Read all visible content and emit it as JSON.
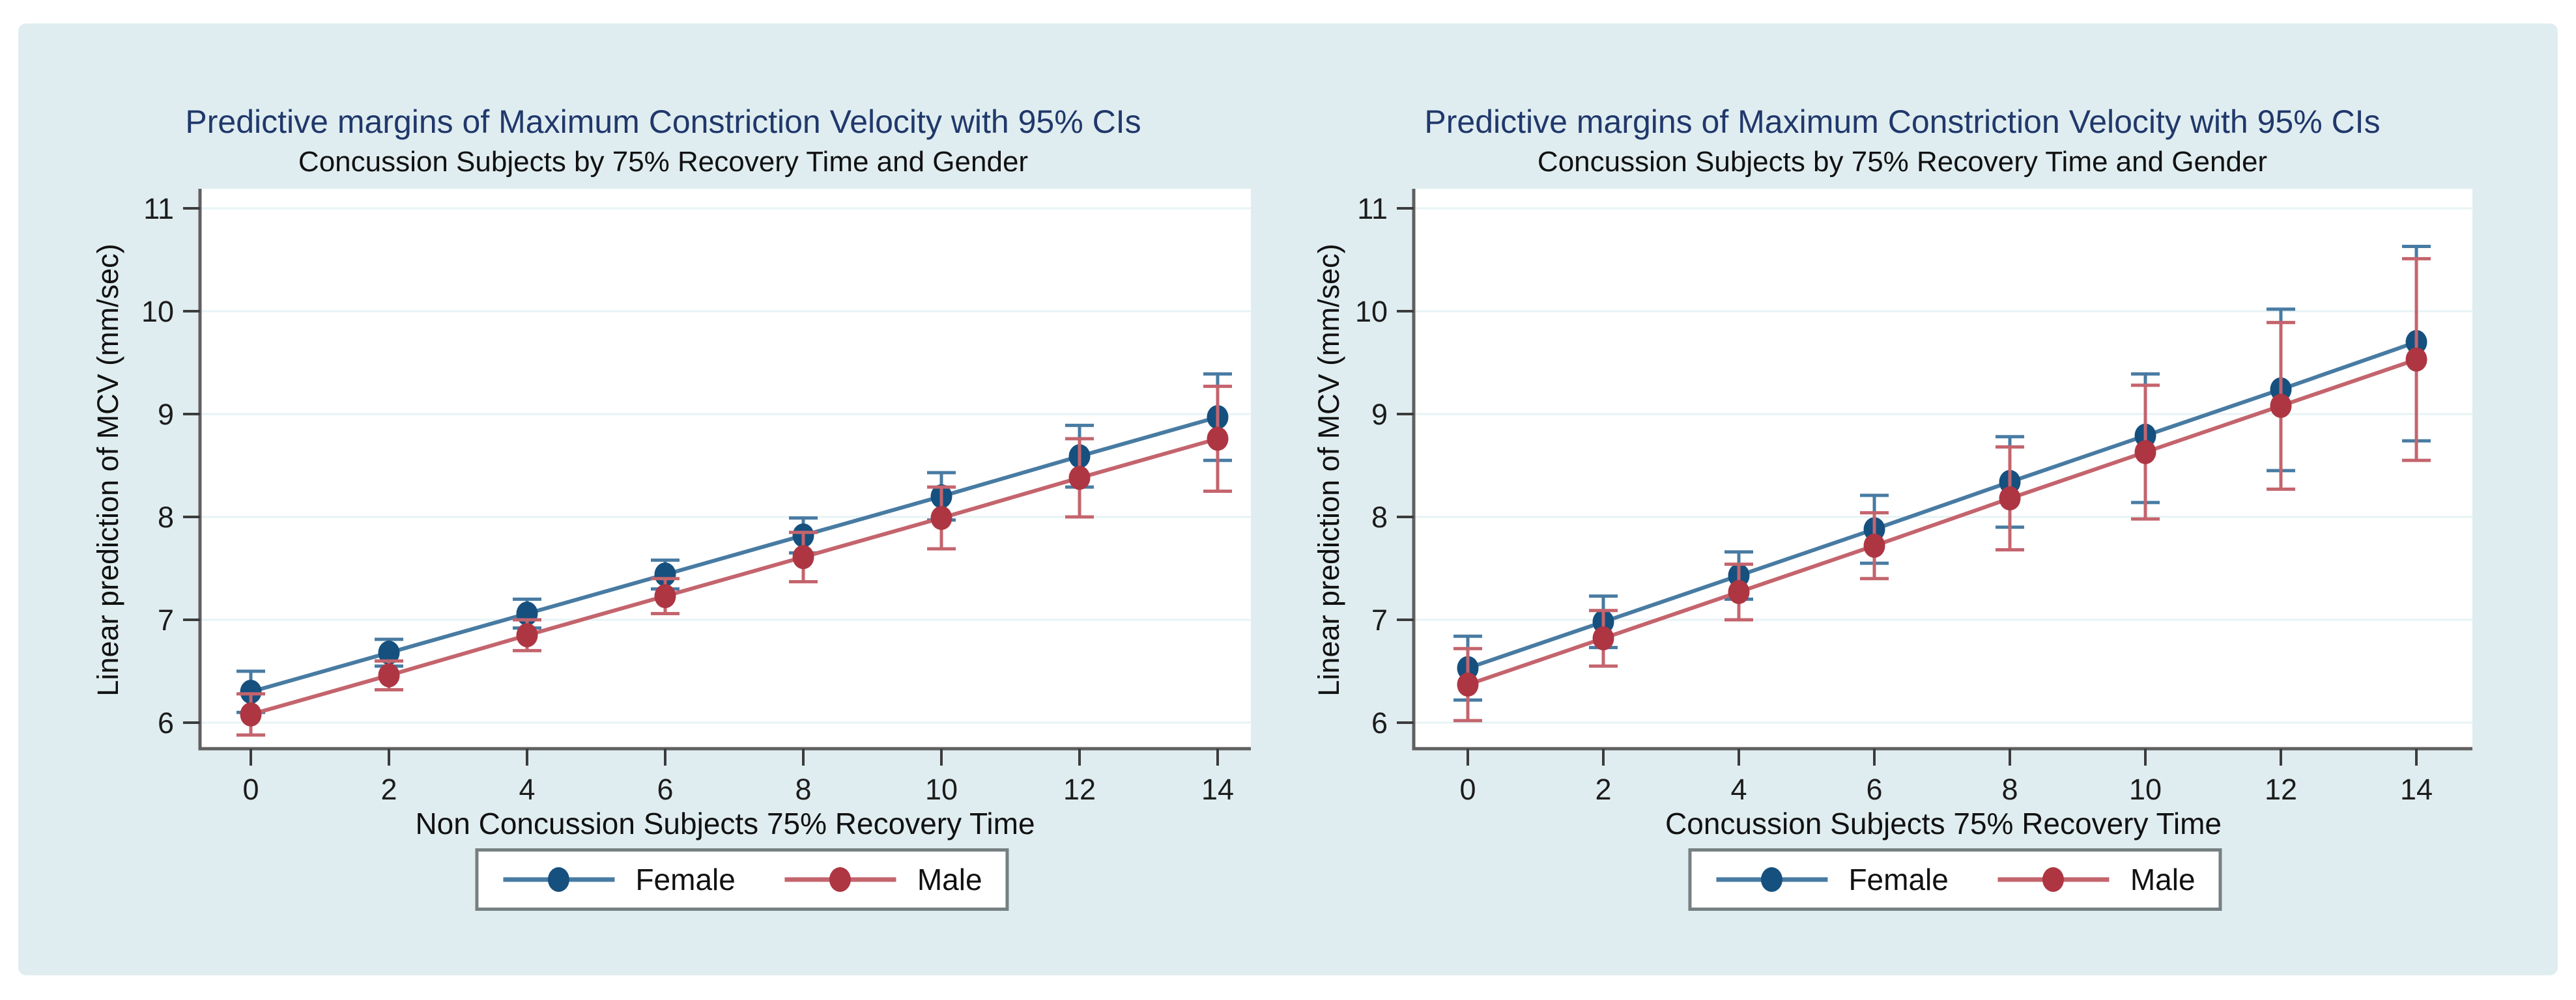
{
  "page": {
    "background_color": "#ffffff",
    "panel_color": "#e0edf0"
  },
  "colors": {
    "title_navy": "#20386b",
    "female_marker": "#15507e",
    "female_line": "#487ba2",
    "male_marker": "#ad3642",
    "male_line": "#c4646d",
    "axis_gray": "#606060",
    "gridline": "#e7f3f5",
    "plot_background": "#ffffff",
    "legend_border": "#768082"
  },
  "legend": {
    "items": [
      {
        "label": "Female"
      },
      {
        "label": "Male"
      }
    ]
  },
  "chart_data": [
    {
      "type": "line",
      "title": "Predictive margins of Maximum Constriction Velocity with 95% CIs",
      "subtitle": "Concussion Subjects by 75% Recovery Time and Gender",
      "xlabel": "Non Concussion Subjects 75% Recovery Time",
      "ylabel": "Linear prediction of MCV (mm/sec)",
      "x": [
        0,
        2,
        4,
        6,
        8,
        10,
        12,
        14
      ],
      "xticks": [
        0,
        2,
        4,
        6,
        8,
        10,
        12,
        14
      ],
      "yticks": [
        6,
        7,
        8,
        9,
        10,
        11
      ],
      "ylim": [
        5.7,
        11.15
      ],
      "grid": true,
      "error_bars": "95% CI, capped",
      "legend_position": "bottom-center",
      "series": [
        {
          "name": "Female",
          "marker_color": "#15507e",
          "line_color": "#487ba2",
          "values": [
            6.3,
            6.68,
            7.06,
            7.44,
            7.82,
            8.2,
            8.59,
            8.97
          ],
          "ci_low": [
            6.1,
            6.55,
            6.92,
            7.3,
            7.65,
            7.97,
            8.29,
            8.55
          ],
          "ci_high": [
            6.5,
            6.81,
            7.2,
            7.58,
            7.99,
            8.43,
            8.89,
            9.39
          ]
        },
        {
          "name": "Male",
          "marker_color": "#ad3642",
          "line_color": "#c4646d",
          "values": [
            6.08,
            6.46,
            6.85,
            7.23,
            7.61,
            7.99,
            8.38,
            8.76
          ],
          "ci_low": [
            5.88,
            6.32,
            6.7,
            7.06,
            7.37,
            7.69,
            8.0,
            8.25
          ],
          "ci_high": [
            6.28,
            6.6,
            7.0,
            7.4,
            7.85,
            8.29,
            8.76,
            9.27
          ]
        }
      ]
    },
    {
      "type": "line",
      "title": "Predictive margins of Maximum Constriction Velocity with 95% CIs",
      "subtitle": "Concussion Subjects by 75% Recovery Time and Gender",
      "xlabel": "Concussion Subjects 75% Recovery Time",
      "ylabel": "Linear prediction of MCV (mm/sec)",
      "x": [
        0,
        2,
        4,
        6,
        8,
        10,
        12,
        14
      ],
      "xticks": [
        0,
        2,
        4,
        6,
        8,
        10,
        12,
        14
      ],
      "yticks": [
        6,
        7,
        8,
        9,
        10,
        11
      ],
      "ylim": [
        5.7,
        11.15
      ],
      "grid": true,
      "error_bars": "95% CI, capped",
      "legend_position": "bottom-center",
      "series": [
        {
          "name": "Female",
          "marker_color": "#15507e",
          "line_color": "#487ba2",
          "values": [
            6.53,
            6.98,
            7.43,
            7.88,
            8.34,
            8.79,
            9.24,
            9.7
          ],
          "ci_low": [
            6.22,
            6.73,
            7.2,
            7.55,
            7.9,
            8.14,
            8.45,
            8.74
          ],
          "ci_high": [
            6.84,
            7.23,
            7.66,
            8.21,
            8.78,
            9.39,
            10.02,
            10.63
          ]
        },
        {
          "name": "Male",
          "marker_color": "#ad3642",
          "line_color": "#c4646d",
          "values": [
            6.37,
            6.82,
            7.27,
            7.72,
            8.18,
            8.63,
            9.08,
            9.53
          ],
          "ci_low": [
            6.02,
            6.55,
            7.0,
            7.4,
            7.68,
            7.98,
            8.27,
            8.55
          ],
          "ci_high": [
            6.72,
            7.09,
            7.54,
            8.04,
            8.68,
            9.28,
            9.89,
            10.51
          ]
        }
      ]
    }
  ]
}
